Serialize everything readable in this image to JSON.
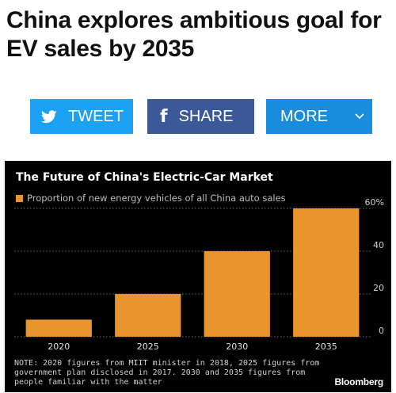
{
  "article": {
    "headline": "China explores ambitious goal for EV sales by 2035"
  },
  "share_bar": {
    "tweet_label": "TWEET",
    "tweet_icon": "twitter-bird-icon",
    "share_label": "SHARE",
    "share_icon": "facebook-f-icon",
    "more_label": "MORE",
    "more_icon": "chevron-down-icon",
    "colors": {
      "tweet": "#1da1f2",
      "share": "#3b5998",
      "more": "#1a8cde"
    }
  },
  "chart_data": {
    "type": "bar",
    "title": "The Future of China's Electric-Car Market",
    "legend": [
      {
        "name": "Proportion of new energy vehicles of all China auto sales",
        "color": "#e8952e"
      }
    ],
    "categories": [
      "2020",
      "2025",
      "2030",
      "2035"
    ],
    "series": [
      {
        "name": "Proportion of new energy vehicles of all China auto sales",
        "values": [
          8,
          20,
          40,
          60
        ]
      }
    ],
    "ylim": [
      0,
      60
    ],
    "yticks": [
      0,
      20,
      40,
      60
    ],
    "ytick_labels": [
      "0",
      "20",
      "40",
      "60%"
    ],
    "y_axis_side": "right",
    "grid": true,
    "note": "NOTE: 2020 figures from MIIT minister in 2018, 2025 figures from government plan disclosed in 2017. 2030 and 2035 figures from people familiar with the matter",
    "source": "Bloomberg",
    "colors": {
      "bar": "#e8952e",
      "background": "#000000",
      "grid": "#6e6e6e",
      "text": "#ffffff"
    }
  }
}
